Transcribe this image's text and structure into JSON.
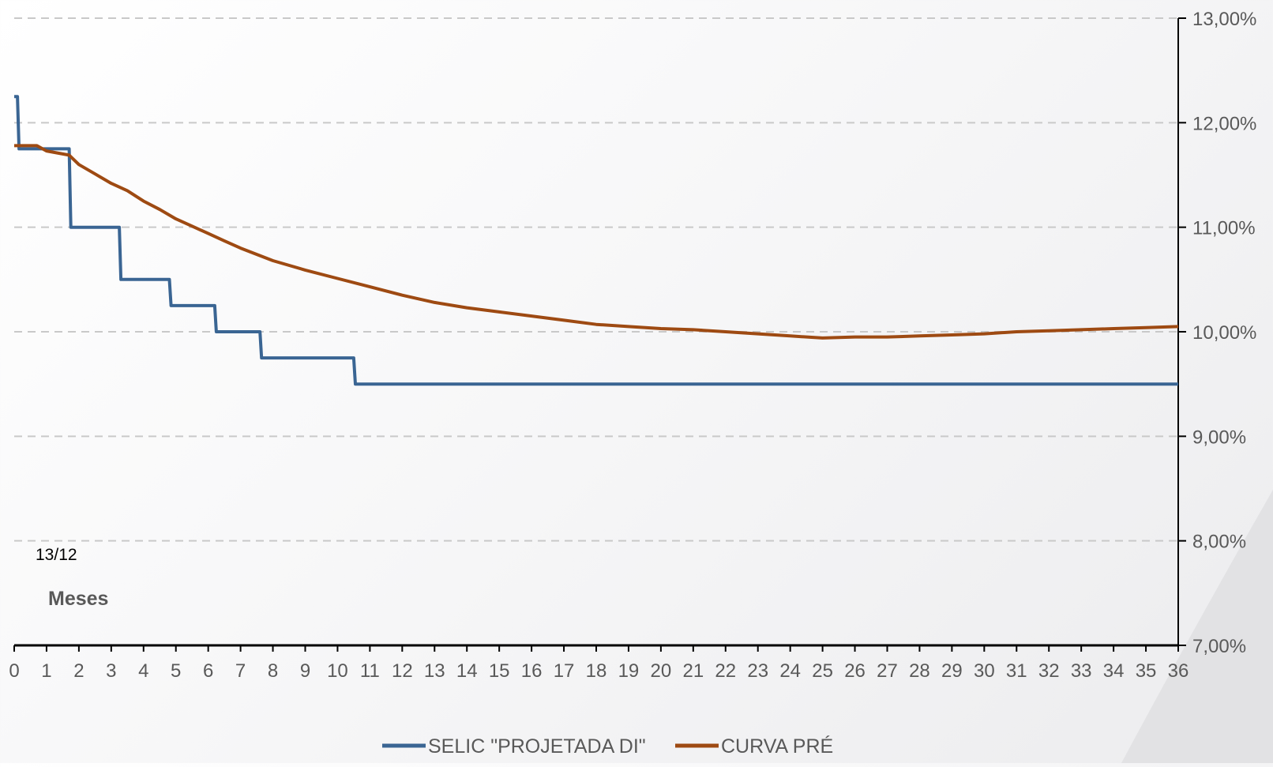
{
  "chart_data": {
    "type": "line",
    "xlabel": "Meses",
    "annotation": "13/12",
    "x_ticks": [
      "0",
      "1",
      "2",
      "3",
      "4",
      "5",
      "6",
      "7",
      "8",
      "9",
      "10",
      "11",
      "12",
      "13",
      "14",
      "15",
      "16",
      "17",
      "18",
      "19",
      "20",
      "21",
      "22",
      "23",
      "24",
      "25",
      "26",
      "27",
      "28",
      "29",
      "30",
      "31",
      "32",
      "33",
      "34",
      "35",
      "36"
    ],
    "y_ticks": [
      "7,00%",
      "8,00%",
      "9,00%",
      "10,00%",
      "11,00%",
      "12,00%",
      "13,00%"
    ],
    "xlim": [
      0,
      36
    ],
    "ylim": [
      7,
      13
    ],
    "y_axis_position": "right",
    "grid": "horizontal dashed",
    "legend_position": "bottom-center",
    "series": [
      {
        "name": "SELIC \"PROJETADA DI\"",
        "color": "#3A6593",
        "step": true,
        "points": [
          [
            0,
            12.25
          ],
          [
            0.1,
            12.25
          ],
          [
            0.15,
            11.75
          ],
          [
            1.65,
            11.75
          ],
          [
            1.7,
            11.75
          ],
          [
            1.75,
            11.0
          ],
          [
            3.25,
            11.0
          ],
          [
            3.3,
            10.5
          ],
          [
            4.8,
            10.5
          ],
          [
            4.85,
            10.25
          ],
          [
            6.2,
            10.25
          ],
          [
            6.25,
            10.0
          ],
          [
            7.6,
            10.0
          ],
          [
            7.65,
            9.75
          ],
          [
            10.5,
            9.75
          ],
          [
            10.55,
            9.5
          ],
          [
            36,
            9.5
          ]
        ]
      },
      {
        "name": "CURVA PRÉ",
        "color": "#9E4A12",
        "step": false,
        "points": [
          [
            0,
            11.78
          ],
          [
            0.7,
            11.78
          ],
          [
            1,
            11.73
          ],
          [
            1.7,
            11.69
          ],
          [
            2,
            11.6
          ],
          [
            2.5,
            11.51
          ],
          [
            3,
            11.42
          ],
          [
            3.5,
            11.35
          ],
          [
            4,
            11.25
          ],
          [
            4.5,
            11.17
          ],
          [
            5,
            11.08
          ],
          [
            5.5,
            11.01
          ],
          [
            6,
            10.94
          ],
          [
            6.5,
            10.87
          ],
          [
            7,
            10.8
          ],
          [
            8,
            10.68
          ],
          [
            9,
            10.59
          ],
          [
            10,
            10.51
          ],
          [
            11,
            10.43
          ],
          [
            12,
            10.35
          ],
          [
            13,
            10.28
          ],
          [
            14,
            10.23
          ],
          [
            15,
            10.19
          ],
          [
            16,
            10.15
          ],
          [
            17,
            10.11
          ],
          [
            18,
            10.07
          ],
          [
            19,
            10.05
          ],
          [
            20,
            10.03
          ],
          [
            21,
            10.02
          ],
          [
            22,
            10.0
          ],
          [
            23,
            9.98
          ],
          [
            24,
            9.96
          ],
          [
            25,
            9.94
          ],
          [
            26,
            9.95
          ],
          [
            27,
            9.95
          ],
          [
            28,
            9.96
          ],
          [
            29,
            9.97
          ],
          [
            30,
            9.98
          ],
          [
            31,
            10.0
          ],
          [
            32,
            10.01
          ],
          [
            33,
            10.02
          ],
          [
            34,
            10.03
          ],
          [
            35,
            10.04
          ],
          [
            36,
            10.05
          ]
        ]
      }
    ]
  }
}
